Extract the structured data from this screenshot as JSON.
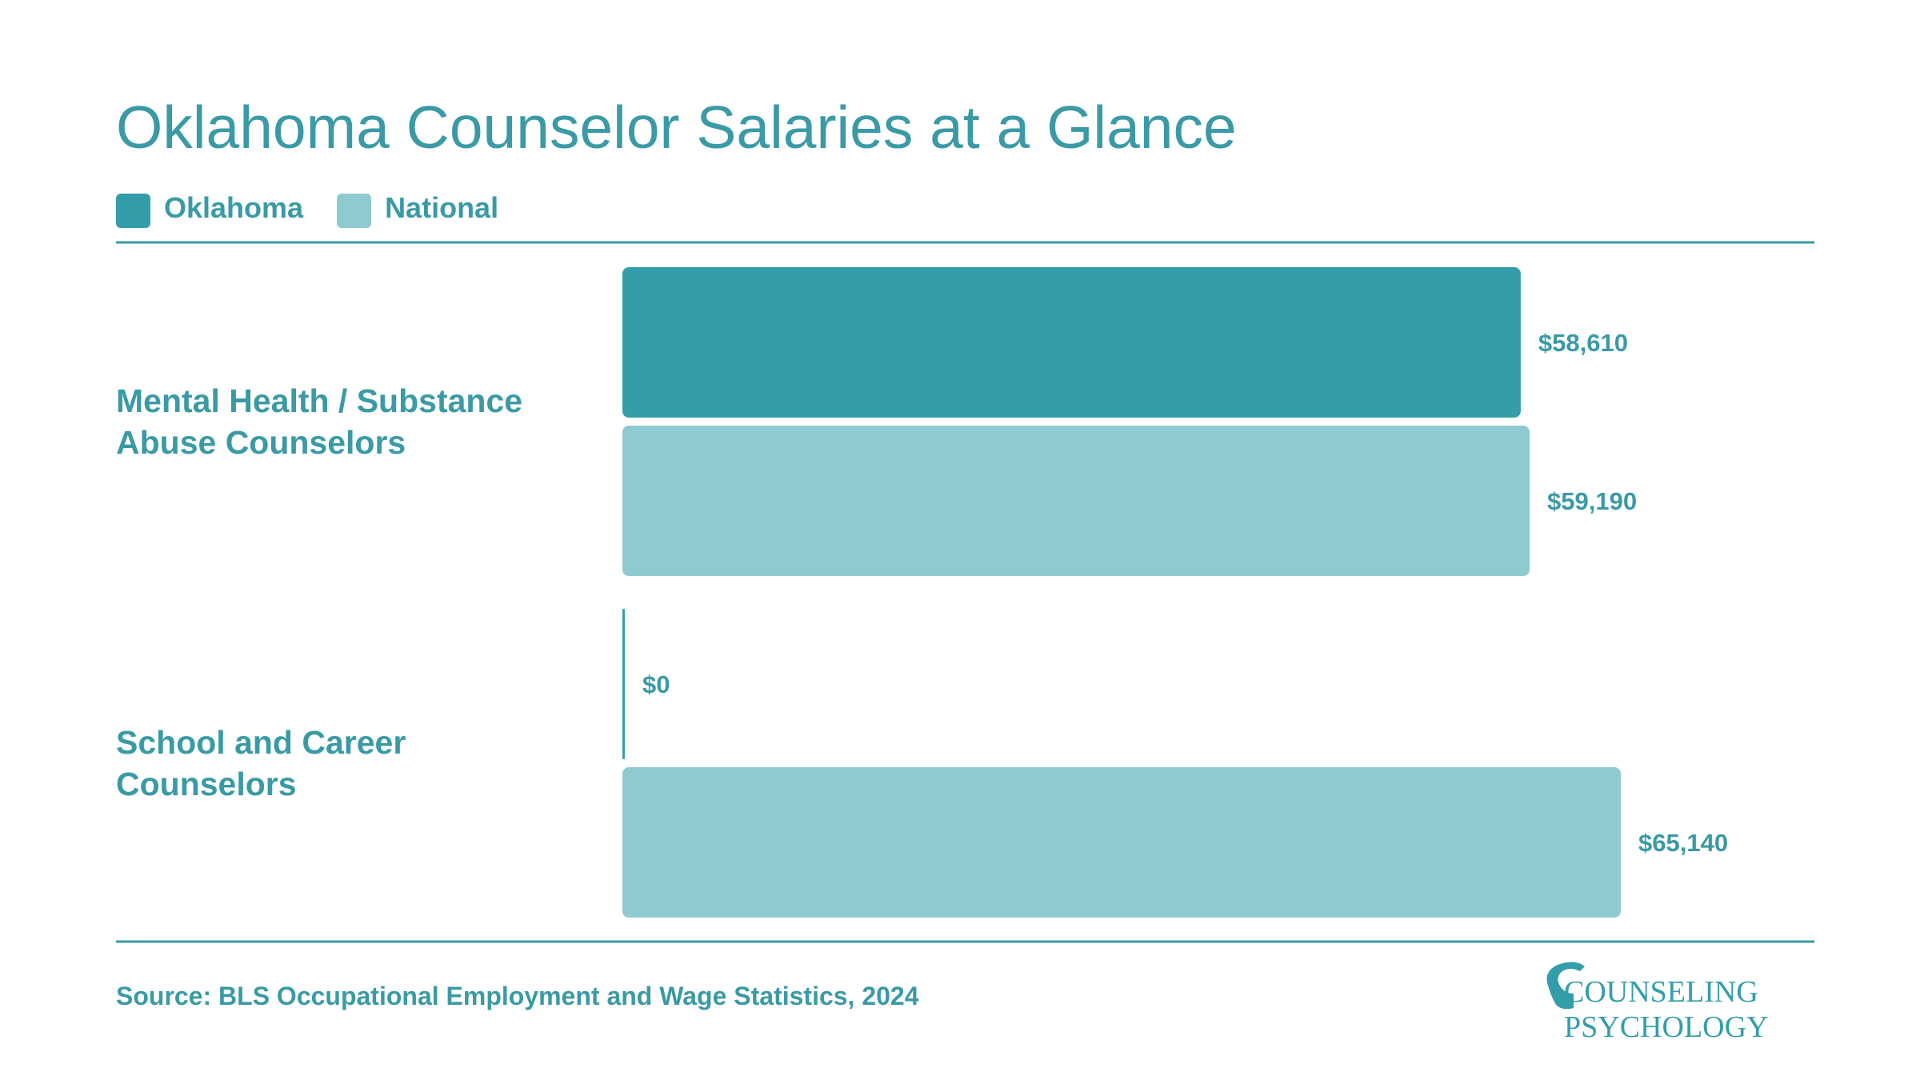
{
  "chart_data": {
    "type": "hbar",
    "title": "Oklahoma Counselor Salaries at a Glance",
    "categories": [
      "Mental Health / Substance Abuse Counselors",
      "School and Career Counselors"
    ],
    "series": [
      {
        "name": "Oklahoma",
        "color": "#339ea9",
        "values": [
          58610,
          0
        ],
        "value_labels": [
          "$58,610",
          "$0"
        ]
      },
      {
        "name": "National",
        "color": "#90cad1",
        "values": [
          59190,
          65140
        ],
        "value_labels": [
          "$59,190",
          "$65,140"
        ]
      }
    ],
    "source": "Source: BLS Occupational Employment and Wage Statistics, 2024"
  },
  "logo": {
    "line1": "COUNSELING",
    "line2": "PSYCHOLOGY"
  }
}
